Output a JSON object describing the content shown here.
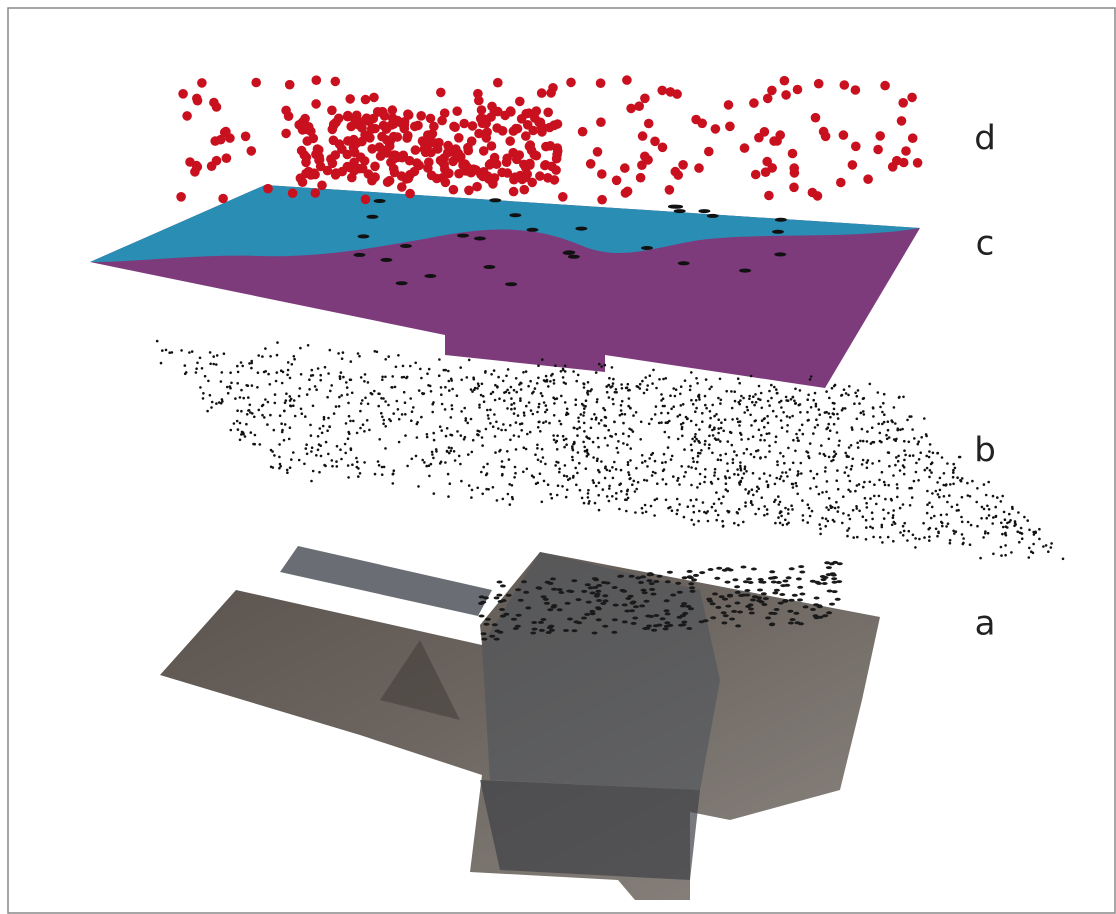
{
  "layers": {
    "labels": [
      "d",
      "c",
      "b",
      "a"
    ]
  }
}
